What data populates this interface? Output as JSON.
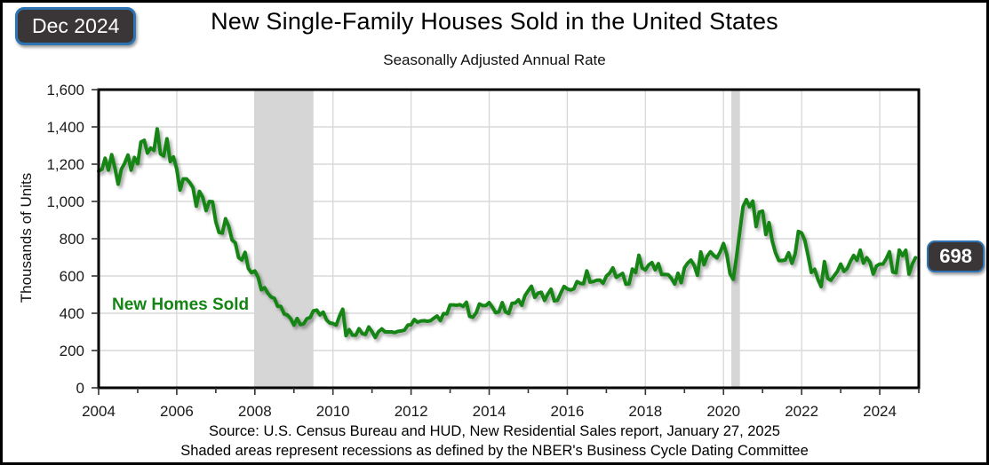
{
  "badges": {
    "date_label": "Dec 2024",
    "latest_value": "698"
  },
  "header": {
    "title": "New Single-Family Houses Sold in the United States",
    "subtitle": "Seasonally Adjusted Annual Rate"
  },
  "series_label": "New Homes Sold",
  "footer": {
    "source_line": "Source:  U.S. Census Bureau and HUD, New Residential Sales report, January 27, 2025",
    "note_line": "Shaded areas represent recessions as defined by the NBER's Business Cycle Dating Committee"
  },
  "chart_data": {
    "type": "line",
    "title": "New Single-Family Houses Sold in the United States",
    "subtitle": "Seasonally Adjusted Annual Rate",
    "xlabel": "",
    "ylabel": "Thousands of Units",
    "ylim": [
      0,
      1600
    ],
    "ytick_step": 200,
    "yticks": [
      "0",
      "200",
      "400",
      "600",
      "800",
      "1,000",
      "1,200",
      "1,400",
      "1,600"
    ],
    "xlim": [
      2004,
      2025.0
    ],
    "xticks": [
      2004,
      2006,
      2008,
      2010,
      2012,
      2014,
      2016,
      2018,
      2020,
      2022,
      2024
    ],
    "x_start_year": 2004,
    "x_frequency": "monthly",
    "grid": true,
    "legend_position": "inline-label",
    "line_color": "#148514",
    "grid_color": "#d9d9d9",
    "recession_shading_color": "#d6d6d6",
    "recessions": [
      {
        "start": 2007.98,
        "end": 2009.5
      },
      {
        "start": 2020.2,
        "end": 2020.42
      }
    ],
    "latest_point": {
      "label": "Dec 2024",
      "value": 698
    },
    "series": [
      {
        "name": "New Homes Sold",
        "values": [
          1163,
          1172,
          1232,
          1168,
          1251,
          1180,
          1093,
          1173,
          1205,
          1249,
          1168,
          1236,
          1203,
          1319,
          1328,
          1260,
          1286,
          1274,
          1389,
          1255,
          1244,
          1336,
          1214,
          1239,
          1174,
          1061,
          1121,
          1121,
          1101,
          1074,
          975,
          1054,
          1022,
          951,
          1000,
          998,
          891,
          834,
          830,
          907,
          865,
          793,
          778,
          699,
          686,
          727,
          641,
          617,
          627,
          593,
          526,
          537,
          507,
          487,
          480,
          438,
          436,
          396,
          391,
          371,
          336,
          372,
          339,
          344,
          371,
          377,
          413,
          417,
          391,
          406,
          365,
          348,
          345,
          336,
          384,
          422,
          280,
          312,
          283,
          282,
          317,
          291,
          286,
          326,
          301,
          270,
          301,
          316,
          300,
          300,
          300,
          296,
          303,
          305,
          310,
          336,
          338,
          366,
          352,
          358,
          360,
          357,
          360,
          374,
          385,
          361,
          398,
          396,
          445,
          445,
          443,
          446,
          437,
          459,
          383,
          379,
          403,
          450,
          441,
          442,
          457,
          432,
          403,
          408,
          457,
          408,
          399,
          453,
          455,
          472,
          443,
          495,
          521,
          545,
          485,
          508,
          513,
          469,
          503,
          529,
          466,
          470,
          508,
          544,
          531,
          525,
          531,
          570,
          560,
          558,
          627,
          567,
          570,
          577,
          578,
          561,
          599,
          615,
          644,
          593,
          603,
          614,
          556,
          558,
          637,
          618,
          711,
          643,
          633,
          659,
          672,
          633,
          666,
          608,
          608,
          607,
          587,
          557,
          615,
          564,
          644,
          669,
          685,
          656,
          604,
          729,
          661,
          706,
          730,
          710,
          697,
          730,
          774,
          716,
          612,
          582,
          704,
          840,
          972,
          1010,
          971,
          1002,
          865,
          943,
          948,
          823,
          886,
          785,
          724,
          683,
          683,
          686,
          725,
          668,
          717,
          839,
          831,
          790,
          707,
          619,
          636,
          582,
          543,
          677,
          588,
          577,
          602,
          625,
          664,
          625,
          640,
          679,
          710,
          684,
          739,
          669,
          698,
          674,
          611,
          654,
          664,
          664,
          693,
          730,
          621,
          617,
          739,
          709,
          738,
          610,
          664,
          698
        ]
      }
    ]
  }
}
